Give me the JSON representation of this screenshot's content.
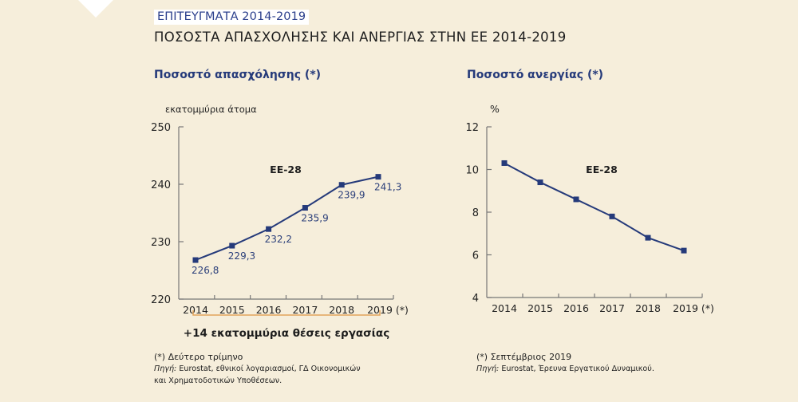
{
  "header": {
    "kicker": "ΕΠΙΤΕΥΓΜΑΤΑ 2014-2019",
    "title": "ΠΟΣΟΣΤΑ ΑΠΑΣΧΟΛΗΣΗΣ ΚΑΙ ΑΝΕΡΓΙΑΣ ΣΤΗΝ ΕΕ 2014-2019"
  },
  "colors": {
    "line": "#253a7a",
    "axis": "#777777",
    "bracket": "#e2a35a",
    "background": "#f6eedb"
  },
  "chart_data": [
    {
      "type": "line",
      "title": "Ποσοστό απασχόλησης (*)",
      "ylabel": "εκατομμύρια άτομα",
      "xlabel": "",
      "series_label": "ΕΕ-28",
      "categories": [
        "2014",
        "2015",
        "2016",
        "2017",
        "2018",
        "2019 (*)"
      ],
      "values": [
        226.8,
        229.3,
        232.2,
        235.9,
        239.9,
        241.3
      ],
      "data_labels": [
        "226,8",
        "229,3",
        "232,2",
        "235,9",
        "239,9",
        "241,3"
      ],
      "ylim": [
        220,
        250
      ],
      "yticks": [
        "220",
        "230",
        "240",
        "250"
      ],
      "grid": false,
      "annotation": "+14 εκατομμύρια θέσεις εργασίας",
      "footnote": "(*) Δεύτερο τρίμηνο",
      "source_label": "Πηγή:",
      "source_line1": " Eurostat, εθνικοί λογαριασμοί, ΓΔ Οικονομικών",
      "source_line2": "και Χρηματοδοτικών Υποθέσεων."
    },
    {
      "type": "line",
      "title": "Ποσοστό ανεργίας (*)",
      "ylabel": "%",
      "xlabel": "",
      "series_label": "ΕΕ-28",
      "categories": [
        "2014",
        "2015",
        "2016",
        "2017",
        "2018",
        "2019 (*)"
      ],
      "values": [
        10.3,
        9.4,
        8.6,
        7.8,
        6.8,
        6.2
      ],
      "ylim": [
        4,
        12
      ],
      "yticks": [
        "4",
        "6",
        "8",
        "10",
        "12"
      ],
      "grid": false,
      "footnote": "(*) Σεπτέμβριος 2019",
      "source_label": "Πηγή:",
      "source_line1": " Eurostat, Έρευνα Εργατικού Δυναμικού."
    }
  ]
}
